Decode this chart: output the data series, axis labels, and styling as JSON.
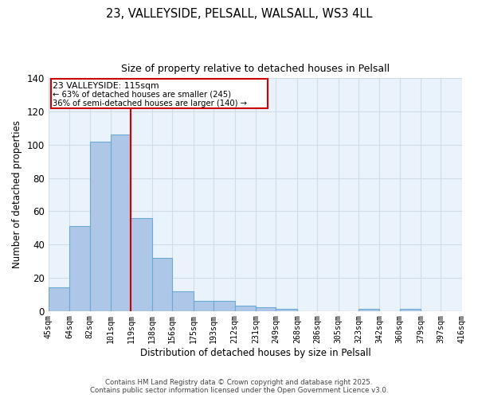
{
  "title1": "23, VALLEYSIDE, PELSALL, WALSALL, WS3 4LL",
  "title2": "Size of property relative to detached houses in Pelsall",
  "xlabel": "Distribution of detached houses by size in Pelsall",
  "ylabel": "Number of detached properties",
  "bar_left_edges": [
    45,
    64,
    82,
    101,
    119,
    138,
    156,
    175,
    193,
    212,
    231,
    249,
    268,
    286,
    305,
    323,
    342,
    360,
    379,
    397
  ],
  "bar_heights": [
    14,
    51,
    102,
    106,
    56,
    32,
    12,
    6,
    6,
    3,
    2,
    1,
    0,
    0,
    0,
    1,
    0,
    1,
    0,
    0
  ],
  "bin_widths": [
    19,
    18,
    19,
    18,
    19,
    18,
    19,
    18,
    19,
    19,
    18,
    19,
    18,
    19,
    18,
    19,
    18,
    19,
    18,
    19
  ],
  "x_tick_labels": [
    "45sqm",
    "64sqm",
    "82sqm",
    "101sqm",
    "119sqm",
    "138sqm",
    "156sqm",
    "175sqm",
    "193sqm",
    "212sqm",
    "231sqm",
    "249sqm",
    "268sqm",
    "286sqm",
    "305sqm",
    "323sqm",
    "342sqm",
    "360sqm",
    "379sqm",
    "397sqm",
    "416sqm"
  ],
  "x_tick_positions": [
    45,
    64,
    82,
    101,
    119,
    138,
    156,
    175,
    193,
    212,
    231,
    249,
    268,
    286,
    305,
    323,
    342,
    360,
    379,
    397,
    416
  ],
  "xlim": [
    45,
    416
  ],
  "ylim": [
    0,
    140
  ],
  "yticks": [
    0,
    20,
    40,
    60,
    80,
    100,
    120,
    140
  ],
  "bar_color": "#aec6e8",
  "bar_edge_color": "#6aaad4",
  "vline_x": 119,
  "vline_color": "#cc0000",
  "ann_line1": "23 VALLEYSIDE: 115sqm",
  "ann_line2": "← 63% of detached houses are smaller (245)",
  "ann_line3": "36% of semi-detached houses are larger (140) →",
  "annotation_box_color": "#ffffff",
  "annotation_box_edge": "#cc0000",
  "background_color": "#ffffff",
  "grid_color": "#d0dce8",
  "footer1": "Contains HM Land Registry data © Crown copyright and database right 2025.",
  "footer2": "Contains public sector information licensed under the Open Government Licence v3.0."
}
